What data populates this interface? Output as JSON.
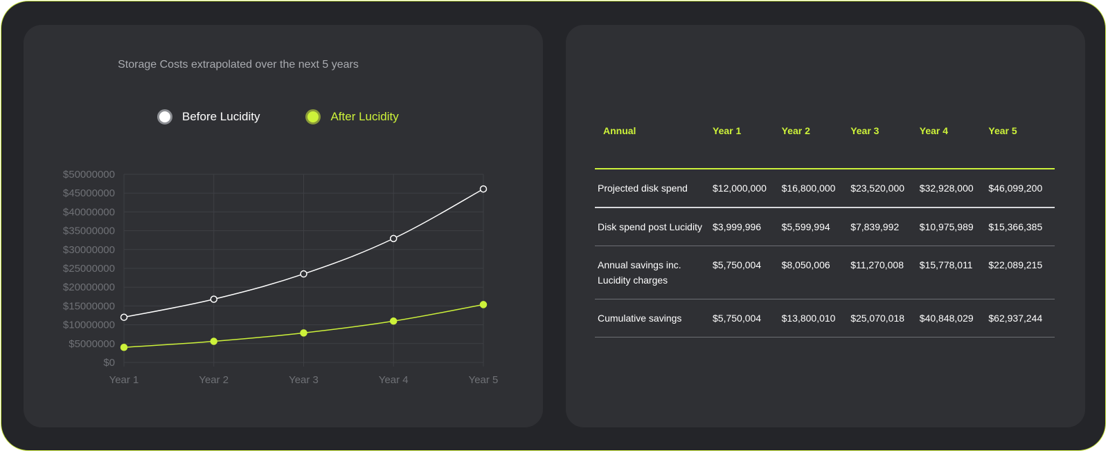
{
  "colors": {
    "accent": "#cdf23a",
    "before_line": "#ffffff",
    "after_line": "#cdf23a",
    "background": "#242529",
    "panel": "#2f3034"
  },
  "chart_data": {
    "type": "line",
    "title": "Storage Costs extrapolated over the next 5 years",
    "categories": [
      "Year 1",
      "Year 2",
      "Year 3",
      "Year 4",
      "Year 5"
    ],
    "series": [
      {
        "name": "Before Lucidity",
        "values": [
          12000000,
          16800000,
          23520000,
          32928000,
          46099200
        ]
      },
      {
        "name": "After Lucidity",
        "values": [
          3999996,
          5599994,
          7839992,
          10975989,
          15366385
        ]
      }
    ],
    "ylim": [
      0,
      50000000
    ],
    "y_ticks": [
      0,
      5000000,
      10000000,
      15000000,
      20000000,
      25000000,
      30000000,
      35000000,
      40000000,
      45000000,
      50000000
    ],
    "y_tick_labels": [
      "$0",
      "$5000000",
      "$10000000",
      "$15000000",
      "$20000000",
      "$25000000",
      "$30000000",
      "$35000000",
      "$40000000",
      "$45000000",
      "$50000000"
    ],
    "grid": true,
    "legend_position": "top-center"
  },
  "table": {
    "headers": [
      "Annual",
      "Year 1",
      "Year 2",
      "Year 3",
      "Year 4",
      "Year 5"
    ],
    "rows": [
      {
        "label": "Projected disk spend",
        "cells": [
          "$12,000,000",
          "$16,800,000",
          "$23,520,000",
          "$32,928,000",
          "$46,099,200"
        ]
      },
      {
        "label": "Disk spend post Lucidity",
        "cells": [
          "$3,999,996",
          "$5,599,994",
          "$7,839,992",
          "$10,975,989",
          "$15,366,385"
        ]
      },
      {
        "label": "Annual savings inc. Lucidity charges",
        "cells": [
          "$5,750,004",
          "$8,050,006",
          "$11,270,008",
          "$15,778,011",
          "$22,089,215"
        ]
      },
      {
        "label": "Cumulative savings",
        "cells": [
          "$5,750,004",
          "$13,800,010",
          "$25,070,018",
          "$40,848,029",
          "$62,937,244"
        ]
      }
    ]
  }
}
